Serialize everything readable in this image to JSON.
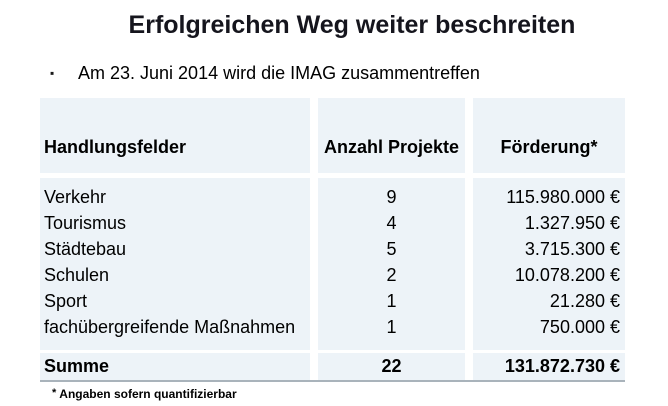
{
  "title": "Erfolgreichen Weg weiter beschreiten",
  "bullet": {
    "marker": "▪",
    "text": "Am 23. Juni 2014 wird die IMAG zusammentreffen"
  },
  "table": {
    "headers": [
      "Handlungsfelder",
      "Anzahl Projekte",
      "Förderung*"
    ],
    "rows": [
      {
        "field": "Verkehr",
        "projects": "9",
        "funding": "115.980.000 €"
      },
      {
        "field": "Tourismus",
        "projects": "4",
        "funding": "1.327.950 €"
      },
      {
        "field": "Städtebau",
        "projects": "5",
        "funding": "3.715.300 €"
      },
      {
        "field": "Schulen",
        "projects": "2",
        "funding": "10.078.200 €"
      },
      {
        "field": "Sport",
        "projects": "1",
        "funding": "21.280 €"
      },
      {
        "field": "fachübergreifende Maßnahmen",
        "projects": "1",
        "funding": "750.000 €"
      }
    ],
    "total": {
      "field": "Summe",
      "projects": "22",
      "funding": "131.872.730 €"
    }
  },
  "footnote": {
    "marker": "*",
    "text": "Angaben sofern quantifizierbar"
  },
  "colors": {
    "table_bg": "#edf3f8",
    "total_border": "#a9b3bb",
    "title_text": "#15151d",
    "body_text": "#000000"
  }
}
